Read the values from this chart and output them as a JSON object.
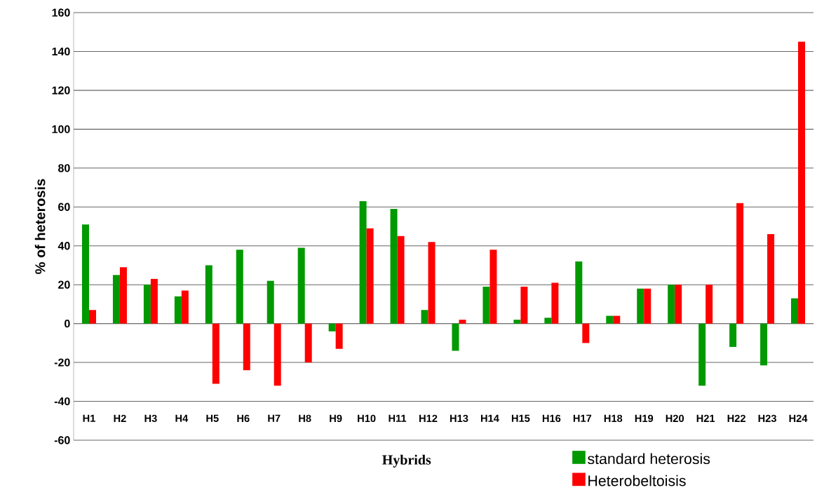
{
  "chart_data": {
    "type": "bar",
    "xlabel": "Hybrids",
    "ylabel": "% of heterosis",
    "categories": [
      "H1",
      "H2",
      "H3",
      "H4",
      "H5",
      "H6",
      "H7",
      "H8",
      "H9",
      "H10",
      "H11",
      "H12",
      "H13",
      "H14",
      "H15",
      "H16",
      "H17",
      "H18",
      "H19",
      "H20",
      "H21",
      "H22",
      "H23",
      "H24"
    ],
    "series": [
      {
        "name": "standard heterosis",
        "color": "#009900",
        "values": [
          51,
          25,
          20,
          14,
          30,
          38,
          22,
          39,
          -4,
          63,
          59,
          7,
          -14,
          19,
          2,
          3,
          32,
          4,
          18,
          20,
          -32,
          -12,
          -21.5,
          13
        ]
      },
      {
        "name": "Heterobeltoisis",
        "color": "#ff0000",
        "values": [
          7,
          29,
          23,
          17,
          -31,
          -24,
          -32,
          -20,
          -13,
          49,
          45,
          42,
          2,
          38,
          19,
          21,
          -10,
          4,
          18,
          20,
          20,
          62,
          46,
          145
        ]
      }
    ],
    "ylim": [
      -60,
      160
    ],
    "yticks": [
      -60,
      -40,
      -20,
      0,
      20,
      40,
      60,
      80,
      100,
      120,
      140,
      160
    ],
    "grid": "y",
    "legend": "bottom right"
  }
}
